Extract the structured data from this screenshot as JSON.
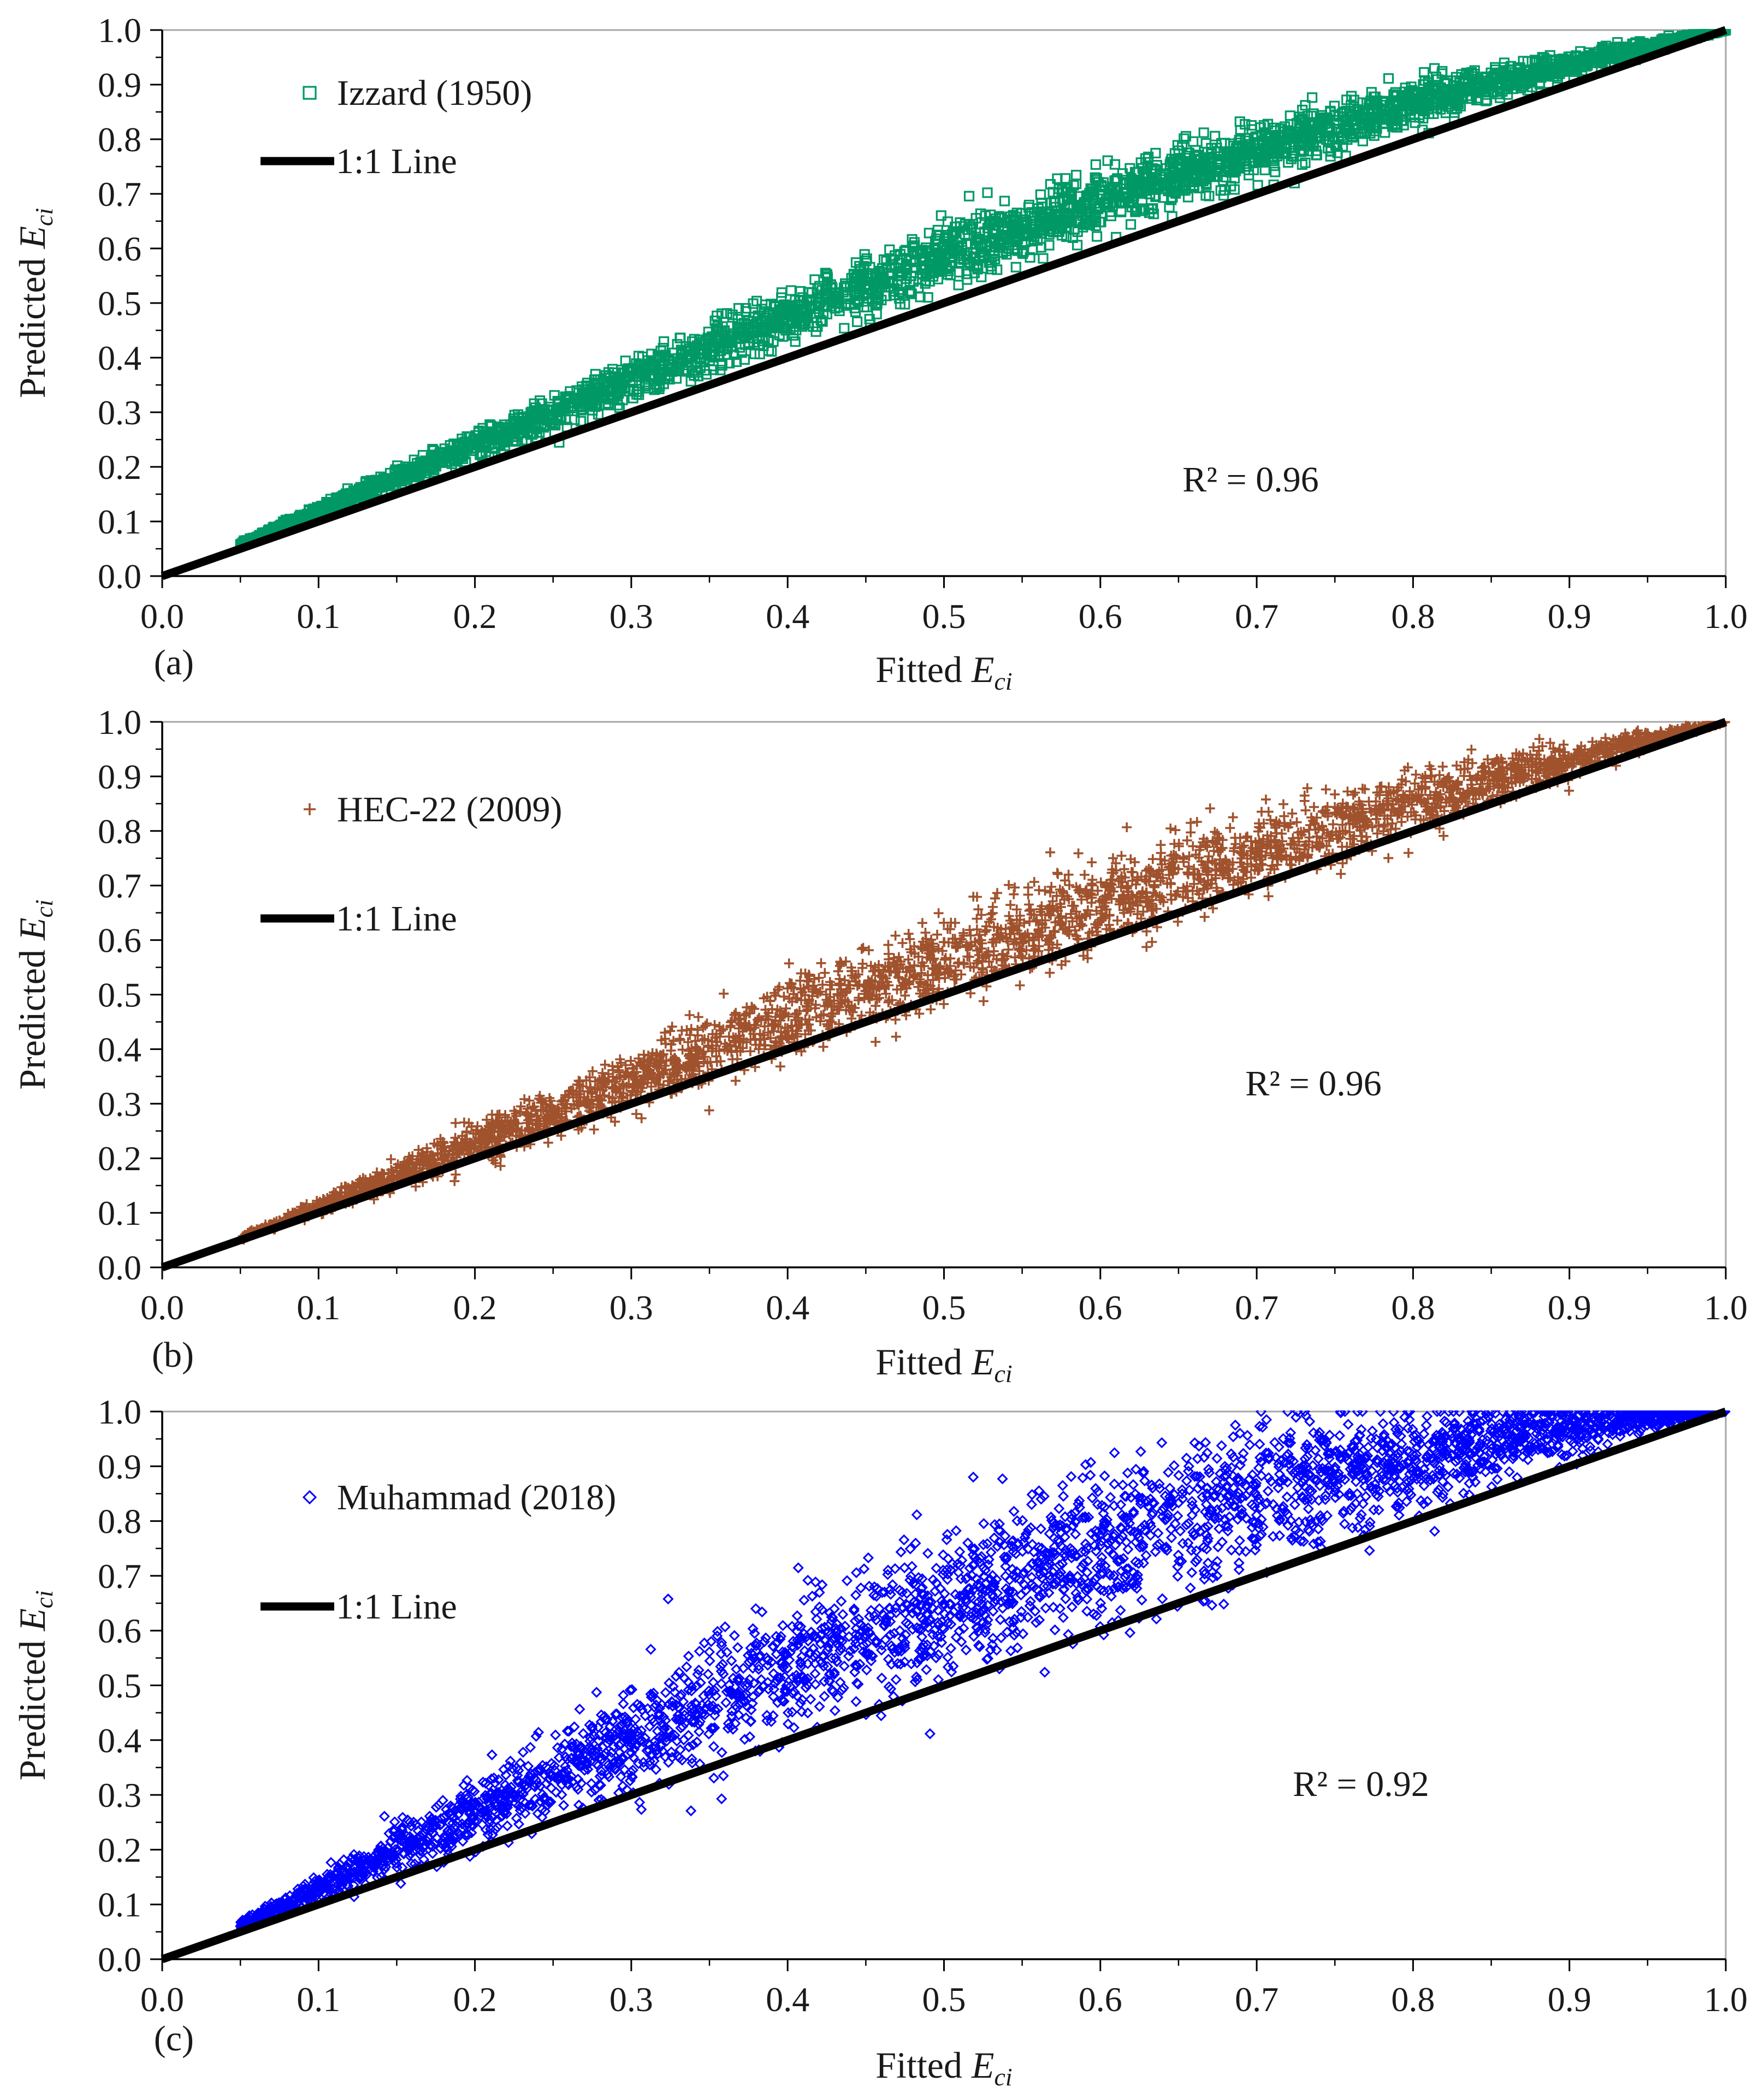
{
  "chart_data": [
    {
      "type": "scatter",
      "panel_label": "(a)",
      "series": [
        {
          "name": "Izzard (1950)",
          "marker": "square",
          "color": "#009966",
          "curve_coeffs": [
            0.11,
            0.32
          ],
          "spread": 0.035
        },
        {
          "name": "1:1 Line",
          "type": "line",
          "color": "#000000",
          "x": [
            0.0,
            1.0
          ],
          "y": [
            0.0,
            1.0
          ]
        }
      ],
      "annotation": "R² = 0.96",
      "xlabel": {
        "prefix": "Fitted ",
        "var": "E",
        "sub": "ci"
      },
      "ylabel": {
        "prefix": "Predicted ",
        "var": "E",
        "sub": "ci"
      },
      "xlim": [
        0.0,
        1.0
      ],
      "ylim": [
        0.0,
        1.0
      ],
      "xticks": [
        "0.0",
        "0.1",
        "0.2",
        "0.3",
        "0.4",
        "0.5",
        "0.6",
        "0.7",
        "0.8",
        "0.9",
        "1.0"
      ],
      "yticks": [
        "0.0",
        "0.1",
        "0.2",
        "0.3",
        "0.4",
        "0.5",
        "0.6",
        "0.7",
        "0.8",
        "0.9",
        "1.0"
      ],
      "data_range_x": [
        0.05,
        1.0
      ],
      "legend_position": "top-left",
      "grid": false
    },
    {
      "type": "scatter",
      "panel_label": "(b)",
      "series": [
        {
          "name": "HEC-22 (2009)",
          "marker": "plus",
          "color": "#A0522D",
          "curve_coeffs": [
            0.02,
            0.32
          ],
          "spread": 0.05
        },
        {
          "name": "1:1 Line",
          "type": "line",
          "color": "#000000",
          "x": [
            0.0,
            1.0
          ],
          "y": [
            0.0,
            1.0
          ]
        }
      ],
      "annotation": "R² = 0.96",
      "xlabel": {
        "prefix": "Fitted ",
        "var": "E",
        "sub": "ci"
      },
      "ylabel": {
        "prefix": "Predicted ",
        "var": "E",
        "sub": "ci"
      },
      "xlim": [
        0.0,
        1.0
      ],
      "ylim": [
        0.0,
        1.0
      ],
      "xticks": [
        "0.0",
        "0.1",
        "0.2",
        "0.3",
        "0.4",
        "0.5",
        "0.6",
        "0.7",
        "0.8",
        "0.9",
        "1.0"
      ],
      "yticks": [
        "0.0",
        "0.1",
        "0.2",
        "0.3",
        "0.4",
        "0.5",
        "0.6",
        "0.7",
        "0.8",
        "0.9",
        "1.0"
      ],
      "data_range_x": [
        0.05,
        1.0
      ],
      "legend_position": "top-left",
      "grid": false
    },
    {
      "type": "scatter",
      "panel_label": "(c)",
      "series": [
        {
          "name": "Muhammad (2018)",
          "marker": "diamond",
          "color": "#0000FF",
          "curve_coeffs": [
            0.12,
            0.68
          ],
          "spread": 0.085
        },
        {
          "name": "1:1 Line",
          "type": "line",
          "color": "#000000",
          "x": [
            0.0,
            1.0
          ],
          "y": [
            0.0,
            1.0
          ]
        }
      ],
      "annotation": "R² = 0.92",
      "xlabel": {
        "prefix": "Fitted ",
        "var": "E",
        "sub": "ci"
      },
      "ylabel": {
        "prefix": "Predicted ",
        "var": "E",
        "sub": "ci"
      },
      "xlim": [
        0.0,
        1.0
      ],
      "ylim": [
        0.0,
        1.0
      ],
      "xticks": [
        "0.0",
        "0.1",
        "0.2",
        "0.3",
        "0.4",
        "0.5",
        "0.6",
        "0.7",
        "0.8",
        "0.9",
        "1.0"
      ],
      "yticks": [
        "0.0",
        "0.1",
        "0.2",
        "0.3",
        "0.4",
        "0.5",
        "0.6",
        "0.7",
        "0.8",
        "0.9",
        "1.0"
      ],
      "data_range_x": [
        0.05,
        1.0
      ],
      "legend_position": "top-left",
      "grid": false
    }
  ]
}
